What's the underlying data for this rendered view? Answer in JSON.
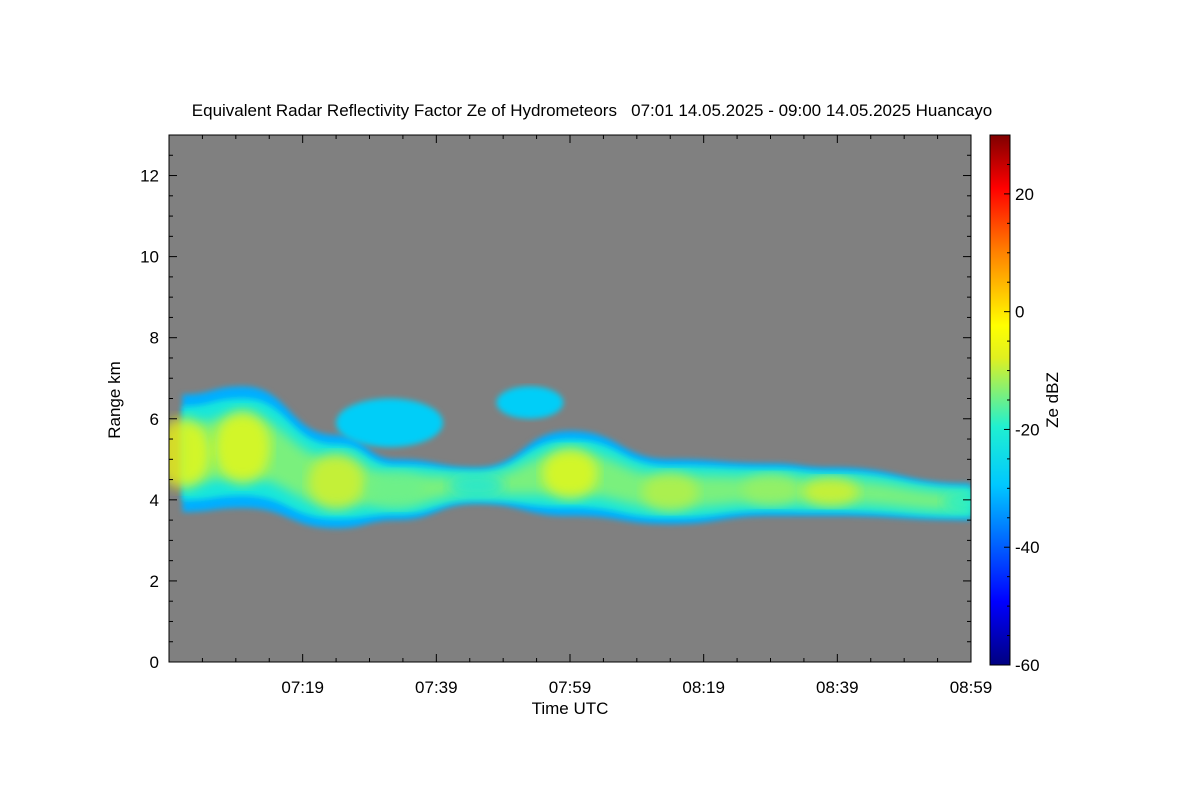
{
  "chart_data": {
    "type": "heatmap",
    "title": "Equivalent Radar Reflectivity Factor Ze of Hydrometeors   07:01 14.05.2025 - 09:00 14.05.2025 Huancayo",
    "xlabel": "Time UTC",
    "ylabel": "Range km",
    "xlim": [
      "06:59",
      "08:59"
    ],
    "ylim": [
      0,
      13
    ],
    "x_ticks": [
      "07:19",
      "07:39",
      "07:59",
      "08:19",
      "08:39",
      "08:59"
    ],
    "y_ticks": [
      "0",
      "2",
      "4",
      "6",
      "8",
      "10",
      "12"
    ],
    "background_color": "#808080",
    "colorbar": {
      "label": "Ze dBZ",
      "range": [
        -60,
        30
      ],
      "ticks": [
        "20",
        "0",
        "-20",
        "-40",
        "-60"
      ],
      "colormap": "jet"
    },
    "cloud_layer": {
      "description_points": [
        {
          "time": "07:01",
          "base_km": 3.7,
          "top_km": 6.6,
          "core_dbz": -5
        },
        {
          "time": "07:10",
          "base_km": 3.8,
          "top_km": 6.8,
          "core_dbz": -5
        },
        {
          "time": "07:24",
          "base_km": 3.3,
          "top_km": 5.6,
          "core_dbz": -8
        },
        {
          "time": "07:33",
          "base_km": 3.5,
          "top_km": 5.0,
          "core_dbz": -15
        },
        {
          "time": "07:45",
          "base_km": 3.9,
          "top_km": 4.8,
          "core_dbz": -22
        },
        {
          "time": "07:59",
          "base_km": 3.6,
          "top_km": 5.7,
          "core_dbz": -5
        },
        {
          "time": "08:14",
          "base_km": 3.4,
          "top_km": 5.0,
          "core_dbz": -10
        },
        {
          "time": "08:29",
          "base_km": 3.6,
          "top_km": 4.9,
          "core_dbz": -12
        },
        {
          "time": "08:38",
          "base_km": 3.6,
          "top_km": 4.8,
          "core_dbz": -8
        },
        {
          "time": "08:59",
          "base_km": 3.5,
          "top_km": 4.4,
          "core_dbz": -20
        }
      ],
      "upper_patches": [
        {
          "time_start": "07:24",
          "time_end": "07:40",
          "base_km": 5.3,
          "top_km": 6.5
        },
        {
          "time_start": "07:48",
          "time_end": "07:58",
          "base_km": 6.0,
          "top_km": 6.8
        }
      ]
    }
  }
}
